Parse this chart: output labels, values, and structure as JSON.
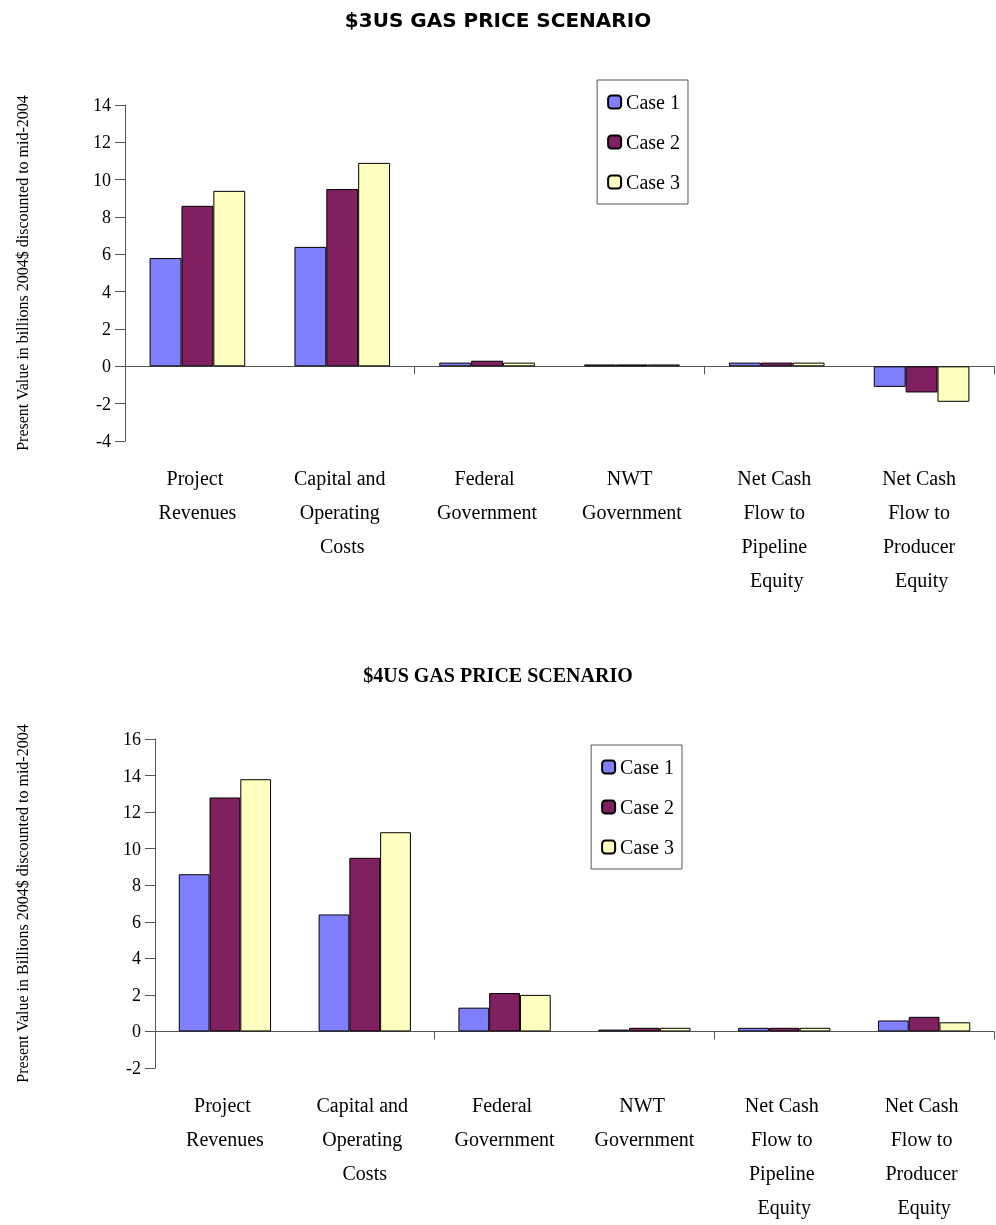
{
  "chart_data": [
    {
      "type": "bar",
      "title": "$3US GAS PRICE SCENARIO",
      "ylabel": "Present Value in billions 2004$ discounted to mid-2004",
      "categories": [
        "Project Revenues",
        "Capital and Operating Costs",
        "Federal Government",
        "NWT Government",
        "Net Cash Flow to Pipeline Equity",
        "Net Cash Flow to Producer Equity"
      ],
      "series": [
        {
          "name": "Case 1",
          "color": "#8080ff",
          "values": [
            5.8,
            6.4,
            0.2,
            0.1,
            0.2,
            -1.1
          ]
        },
        {
          "name": "Case 2",
          "color": "#802060",
          "values": [
            8.6,
            9.5,
            0.3,
            0.1,
            0.2,
            -1.4
          ]
        },
        {
          "name": "Case 3",
          "color": "#ffffc0",
          "values": [
            9.4,
            10.9,
            0.2,
            0.1,
            0.2,
            -1.9
          ]
        }
      ],
      "ylim": [
        -4,
        14
      ],
      "yticks": [
        -4,
        -2,
        0,
        2,
        4,
        6,
        8,
        10,
        12,
        14
      ],
      "legend": "top right"
    },
    {
      "type": "bar",
      "title": "$4US GAS PRICE SCENARIO",
      "ylabel": "Present Value in Billions 2004$ discounted to mid-2004",
      "categories": [
        "Project Revenues",
        "Capital and Operating Costs",
        "Federal Government",
        "NWT Government",
        "Net Cash Flow to Pipeline Equity",
        "Net Cash Flow to Producer Equity"
      ],
      "series": [
        {
          "name": "Case 1",
          "color": "#8080ff",
          "values": [
            8.6,
            6.4,
            1.3,
            0.1,
            0.2,
            0.6
          ]
        },
        {
          "name": "Case 2",
          "color": "#802060",
          "values": [
            12.8,
            9.5,
            2.1,
            0.2,
            0.2,
            0.8
          ]
        },
        {
          "name": "Case 3",
          "color": "#ffffc0",
          "values": [
            13.8,
            10.9,
            2.0,
            0.2,
            0.2,
            0.5
          ]
        }
      ],
      "ylim": [
        -2,
        16
      ],
      "yticks": [
        -2,
        0,
        2,
        4,
        6,
        8,
        10,
        12,
        14,
        16
      ],
      "legend": "top right"
    }
  ]
}
